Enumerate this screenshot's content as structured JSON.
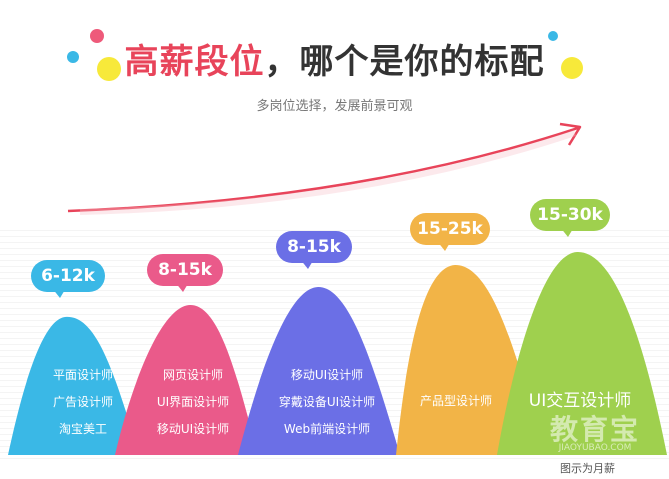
{
  "header": {
    "title_highlight": "高薪段位",
    "title_rest": "，哪个是你的标配",
    "subtitle": "多岗位选择，发展前景可观"
  },
  "colors": {
    "blue": "#3ab8e6",
    "pink": "#ea5a8a",
    "indigo": "#6b6fe6",
    "orange": "#f2b447",
    "green": "#9fd04e",
    "arrow": "#e8445a"
  },
  "tiers": [
    {
      "salary": "6-12k",
      "roles": [
        "平面设计师",
        "广告设计师",
        "淘宝美工"
      ]
    },
    {
      "salary": "8-15k",
      "roles": [
        "网页设计师",
        "UI界面设计师",
        "移动UI设计师"
      ]
    },
    {
      "salary": "8-15k",
      "roles": [
        "移动UI设计师",
        "穿戴设备UI设计师",
        "Web前端设计师"
      ]
    },
    {
      "salary": "15-25k",
      "roles": [
        "产品型设计师"
      ]
    },
    {
      "salary": "15-30k",
      "roles": [
        "UI交互设计师"
      ]
    }
  ],
  "watermark": {
    "main": "教育宝",
    "sub": "JIAOYUBAO.COM"
  },
  "footnote": "图示为月薪"
}
